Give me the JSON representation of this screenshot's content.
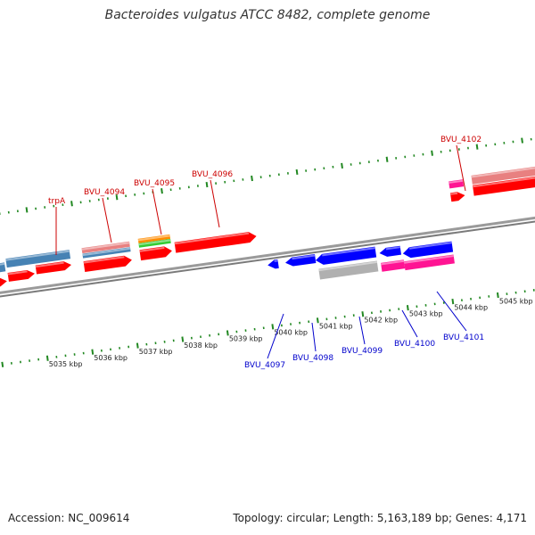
{
  "title": "Bacteroides vulgatus ATCC 8482, complete genome",
  "footer": {
    "accession": "Accession: NC_009614",
    "topology": "Topology: circular; Length: 5,163,189 bp; Genes: 4,171"
  },
  "colors": {
    "backbone": "#888888",
    "tick": "#228822",
    "forward_label": "#cc0000",
    "reverse_label": "#0000cc"
  },
  "ruler": {
    "unit": "kbp",
    "labels": [
      "5035 kbp",
      "5036 kbp",
      "5037 kbp",
      "5038 kbp",
      "5039 kbp",
      "5040 kbp",
      "5041 kbp",
      "5042 kbp",
      "5043 kbp",
      "5044 kbp",
      "5045 kbp"
    ]
  },
  "forward_labels": [
    {
      "name": "trpA"
    },
    {
      "name": "BVU_4094"
    },
    {
      "name": "BVU_4095"
    },
    {
      "name": "BVU_4096"
    },
    {
      "name": "BVU_4102"
    }
  ],
  "reverse_labels": [
    {
      "name": "BVU_4097"
    },
    {
      "name": "BVU_4098"
    },
    {
      "name": "BVU_4099"
    },
    {
      "name": "BVU_4100"
    },
    {
      "name": "BVU_4101"
    }
  ],
  "features": [
    {
      "name": "gene-blue-left",
      "color": "#4682b4"
    },
    {
      "name": "gene-trpA",
      "color": "#4682b4"
    },
    {
      "name": "gene-BVU_4094",
      "color": "#e88080"
    },
    {
      "name": "gene-BVU_4095",
      "color": "#ff8c00"
    },
    {
      "name": "gene-BVU_4096",
      "color": "#ff0000"
    },
    {
      "name": "gene-BVU_4097",
      "color": "#0000ff"
    },
    {
      "name": "gene-BVU_4098",
      "color": "#0000ff"
    },
    {
      "name": "gene-BVU_4099",
      "color": "#0000ff"
    },
    {
      "name": "gene-BVU_4100",
      "color": "#0000ff"
    },
    {
      "name": "gene-BVU_4101",
      "color": "#0000ff"
    },
    {
      "name": "gene-BVU_4102",
      "color": "#ff1493"
    }
  ]
}
